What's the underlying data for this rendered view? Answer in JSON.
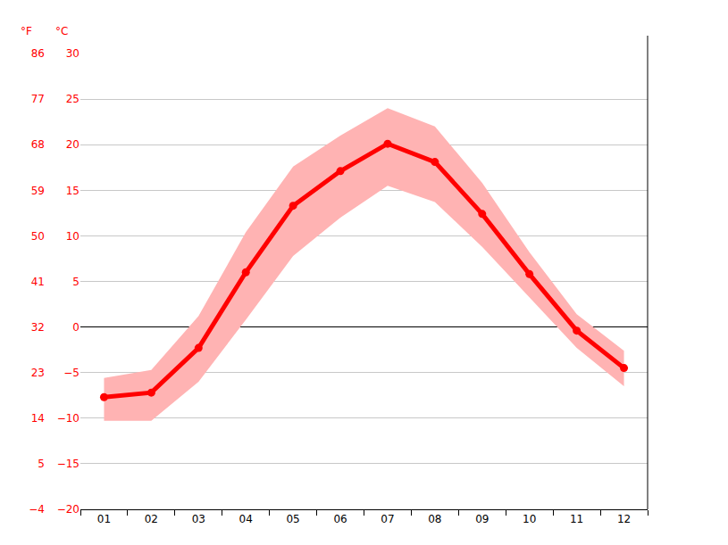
{
  "chart_data": {
    "type": "line",
    "categories": [
      "01",
      "02",
      "03",
      "04",
      "05",
      "06",
      "07",
      "08",
      "09",
      "10",
      "11",
      "12"
    ],
    "values": [
      -7.7,
      -7.2,
      -2.3,
      6.0,
      13.3,
      17.1,
      20.1,
      18.1,
      12.4,
      5.8,
      -0.4,
      -4.5
    ],
    "color": "#ff0000",
    "marker": "circle",
    "line_style": "solid",
    "range": {
      "low": [
        -10.3,
        -10.3,
        -6.0,
        0.8,
        7.8,
        12.0,
        15.5,
        13.7,
        8.8,
        3.2,
        -2.3,
        -6.5
      ],
      "high": [
        -5.6,
        -4.7,
        1.2,
        10.4,
        17.6,
        21.0,
        24.0,
        22.0,
        15.8,
        8.2,
        1.4,
        -2.6
      ],
      "color": "#ffb3b3"
    },
    "ylabel": "°C",
    "y2label": "°F",
    "ylim": [
      -20,
      30
    ],
    "yticks": [
      -20,
      -15,
      -10,
      -5,
      0,
      5,
      10,
      15,
      20,
      25,
      30
    ],
    "y2lim": [
      -4,
      86
    ],
    "y2ticks": [
      -4,
      5,
      14,
      23,
      32,
      41,
      50,
      59,
      68,
      77,
      86
    ],
    "grid": true
  }
}
